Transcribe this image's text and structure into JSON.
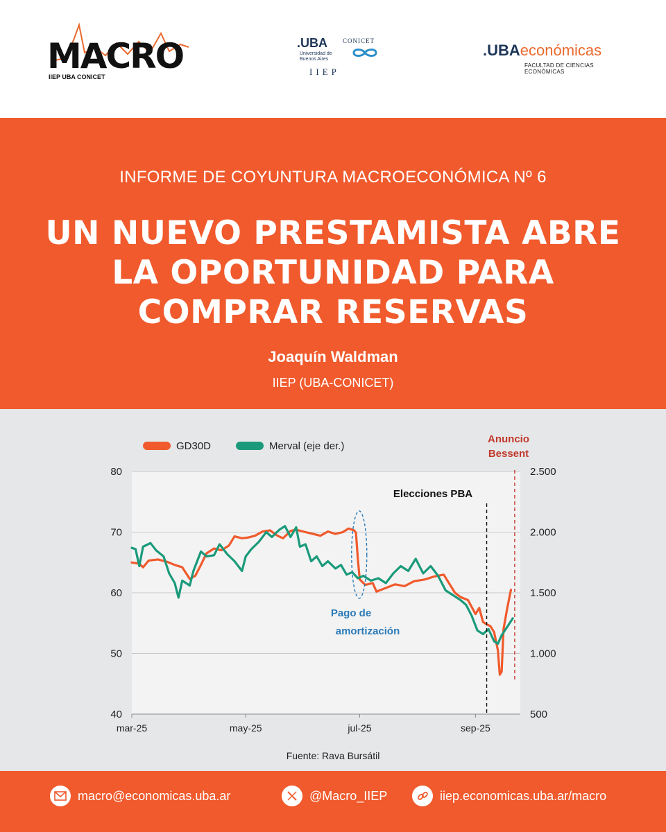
{
  "header": {
    "macro_logo": {
      "word": "MACRO",
      "sub": "IIEP UBA CONICET"
    },
    "uba_logo": {
      "word": ".UBA",
      "sub": "Universidad de Buenos Aires",
      "conicet": "CONICET",
      "iiep": "IIEP"
    },
    "econ_logo": {
      "uba": ".UBA",
      "eco": "económicas",
      "sub": "FACULTAD DE CIENCIAS ECONÓMICAS"
    }
  },
  "banner": {
    "report_label": "INFORME DE COYUNTURA MACROECONÓMICA Nº 6",
    "title": "UN NUEVO PRESTAMISTA ABRE LA OPORTUNIDAD PARA COMPRAR RESERVAS",
    "author": "Joaquín Waldman",
    "affiliation": "IIEP (UBA-CONICET)"
  },
  "chart_data": {
    "type": "line",
    "title": "",
    "xlabel": "",
    "ylabel": "",
    "x_ticks": [
      "mar-25",
      "may-25",
      "jul-25",
      "sep-25"
    ],
    "y_left": {
      "min": 40,
      "max": 80,
      "ticks": [
        "40",
        "50",
        "60",
        "70",
        "80"
      ]
    },
    "y_right": {
      "min": 500,
      "max": 2500,
      "ticks": [
        "500",
        "1.000",
        "1.500",
        "2.000",
        "2.500"
      ]
    },
    "grid": true,
    "legend_position": "top-left",
    "series": [
      {
        "name": "GD30D",
        "axis": "left",
        "color": "#f05a2c",
        "points": [
          [
            "2025-03-01",
            65.0
          ],
          [
            "2025-03-05",
            64.8
          ],
          [
            "2025-03-07",
            64.2
          ],
          [
            "2025-03-10",
            65.3
          ],
          [
            "2025-03-15",
            65.5
          ],
          [
            "2025-03-20",
            65.1
          ],
          [
            "2025-03-24",
            64.6
          ],
          [
            "2025-03-28",
            64.2
          ],
          [
            "2025-04-01",
            62.3
          ],
          [
            "2025-04-04",
            62.8
          ],
          [
            "2025-04-07",
            64.6
          ],
          [
            "2025-04-10",
            66.5
          ],
          [
            "2025-04-14",
            67.3
          ],
          [
            "2025-04-18",
            67.0
          ],
          [
            "2025-04-22",
            67.8
          ],
          [
            "2025-04-25",
            69.3
          ],
          [
            "2025-04-29",
            69.0
          ],
          [
            "2025-05-02",
            69.1
          ],
          [
            "2025-05-06",
            69.4
          ],
          [
            "2025-05-10",
            70.1
          ],
          [
            "2025-05-14",
            70.3
          ],
          [
            "2025-05-18",
            69.4
          ],
          [
            "2025-05-21",
            69.0
          ],
          [
            "2025-05-25",
            70.2
          ],
          [
            "2025-05-28",
            70.4
          ],
          [
            "2025-06-02",
            70.0
          ],
          [
            "2025-06-06",
            69.7
          ],
          [
            "2025-06-10",
            69.4
          ],
          [
            "2025-06-14",
            70.1
          ],
          [
            "2025-06-18",
            69.7
          ],
          [
            "2025-06-22",
            70.0
          ],
          [
            "2025-06-25",
            70.6
          ],
          [
            "2025-06-28",
            70.3
          ],
          [
            "2025-06-29",
            69.9
          ],
          [
            "2025-06-30",
            65.6
          ],
          [
            "2025-07-01",
            62.2
          ],
          [
            "2025-07-04",
            61.3
          ],
          [
            "2025-07-08",
            61.6
          ],
          [
            "2025-07-10",
            60.2
          ],
          [
            "2025-07-15",
            60.8
          ],
          [
            "2025-07-20",
            61.4
          ],
          [
            "2025-07-25",
            61.1
          ],
          [
            "2025-07-30",
            61.9
          ],
          [
            "2025-08-05",
            62.2
          ],
          [
            "2025-08-10",
            62.7
          ],
          [
            "2025-08-15",
            63.0
          ],
          [
            "2025-08-18",
            61.5
          ],
          [
            "2025-08-21",
            60.0
          ],
          [
            "2025-08-24",
            59.3
          ],
          [
            "2025-08-28",
            58.8
          ],
          [
            "2025-09-01",
            56.5
          ],
          [
            "2025-09-03",
            57.5
          ],
          [
            "2025-09-05",
            55.2
          ],
          [
            "2025-09-07",
            54.8
          ],
          [
            "2025-09-09",
            54.5
          ],
          [
            "2025-09-11",
            53.5
          ],
          [
            "2025-09-13",
            50.5
          ],
          [
            "2025-09-14",
            46.5
          ],
          [
            "2025-09-15",
            47.0
          ],
          [
            "2025-09-16",
            54.0
          ],
          [
            "2025-09-18",
            57.5
          ],
          [
            "2025-09-20",
            60.5
          ]
        ]
      },
      {
        "name": "Merval (eje der.)",
        "axis": "right",
        "color": "#1a9a7a",
        "points": [
          [
            "2025-03-01",
            1870
          ],
          [
            "2025-03-03",
            1860
          ],
          [
            "2025-03-05",
            1720
          ],
          [
            "2025-03-07",
            1880
          ],
          [
            "2025-03-11",
            1910
          ],
          [
            "2025-03-14",
            1850
          ],
          [
            "2025-03-18",
            1800
          ],
          [
            "2025-03-21",
            1660
          ],
          [
            "2025-03-24",
            1580
          ],
          [
            "2025-03-26",
            1460
          ],
          [
            "2025-03-28",
            1600
          ],
          [
            "2025-04-01",
            1560
          ],
          [
            "2025-04-03",
            1680
          ],
          [
            "2025-04-07",
            1840
          ],
          [
            "2025-04-10",
            1800
          ],
          [
            "2025-04-14",
            1810
          ],
          [
            "2025-04-17",
            1900
          ],
          [
            "2025-04-21",
            1820
          ],
          [
            "2025-04-25",
            1760
          ],
          [
            "2025-04-29",
            1680
          ],
          [
            "2025-05-01",
            1800
          ],
          [
            "2025-05-04",
            1860
          ],
          [
            "2025-05-08",
            1920
          ],
          [
            "2025-05-12",
            2000
          ],
          [
            "2025-05-15",
            1960
          ],
          [
            "2025-05-19",
            2020
          ],
          [
            "2025-05-22",
            2050
          ],
          [
            "2025-05-25",
            1960
          ],
          [
            "2025-05-28",
            2040
          ],
          [
            "2025-05-30",
            1880
          ],
          [
            "2025-06-02",
            1900
          ],
          [
            "2025-06-05",
            1760
          ],
          [
            "2025-06-08",
            1800
          ],
          [
            "2025-06-11",
            1720
          ],
          [
            "2025-06-14",
            1760
          ],
          [
            "2025-06-18",
            1700
          ],
          [
            "2025-06-21",
            1730
          ],
          [
            "2025-06-24",
            1650
          ],
          [
            "2025-06-27",
            1670
          ],
          [
            "2025-06-30",
            1620
          ],
          [
            "2025-07-03",
            1640
          ],
          [
            "2025-07-07",
            1600
          ],
          [
            "2025-07-11",
            1620
          ],
          [
            "2025-07-15",
            1580
          ],
          [
            "2025-07-19",
            1660
          ],
          [
            "2025-07-23",
            1720
          ],
          [
            "2025-07-27",
            1680
          ],
          [
            "2025-07-31",
            1780
          ],
          [
            "2025-08-04",
            1660
          ],
          [
            "2025-08-08",
            1720
          ],
          [
            "2025-08-12",
            1640
          ],
          [
            "2025-08-16",
            1520
          ],
          [
            "2025-08-20",
            1480
          ],
          [
            "2025-08-24",
            1440
          ],
          [
            "2025-08-27",
            1400
          ],
          [
            "2025-08-30",
            1310
          ],
          [
            "2025-09-02",
            1190
          ],
          [
            "2025-09-05",
            1160
          ],
          [
            "2025-09-08",
            1200
          ],
          [
            "2025-09-11",
            1100
          ],
          [
            "2025-09-13",
            1080
          ],
          [
            "2025-09-15",
            1150
          ],
          [
            "2025-09-18",
            1220
          ],
          [
            "2025-09-21",
            1290
          ]
        ]
      }
    ],
    "annotations": {
      "elecciones": {
        "label": "Elecciones PBA",
        "date": "2025-09-07",
        "color": "#111111"
      },
      "bessent": {
        "label_line1": "Anuncio",
        "label_line2": "Bessent",
        "date": "2025-09-22",
        "color": "#c0392b"
      },
      "pago": {
        "label_line1": "Pago de",
        "label_line2": "amortización",
        "date": "2025-06-30",
        "color": "#2a7ab8"
      }
    },
    "source": "Fuente: Rava Bursátil"
  },
  "footer": {
    "email": "macro@economicas.uba.ar",
    "twitter": "@Macro_IIEP",
    "web": "iiep.economicas.uba.ar/macro"
  }
}
